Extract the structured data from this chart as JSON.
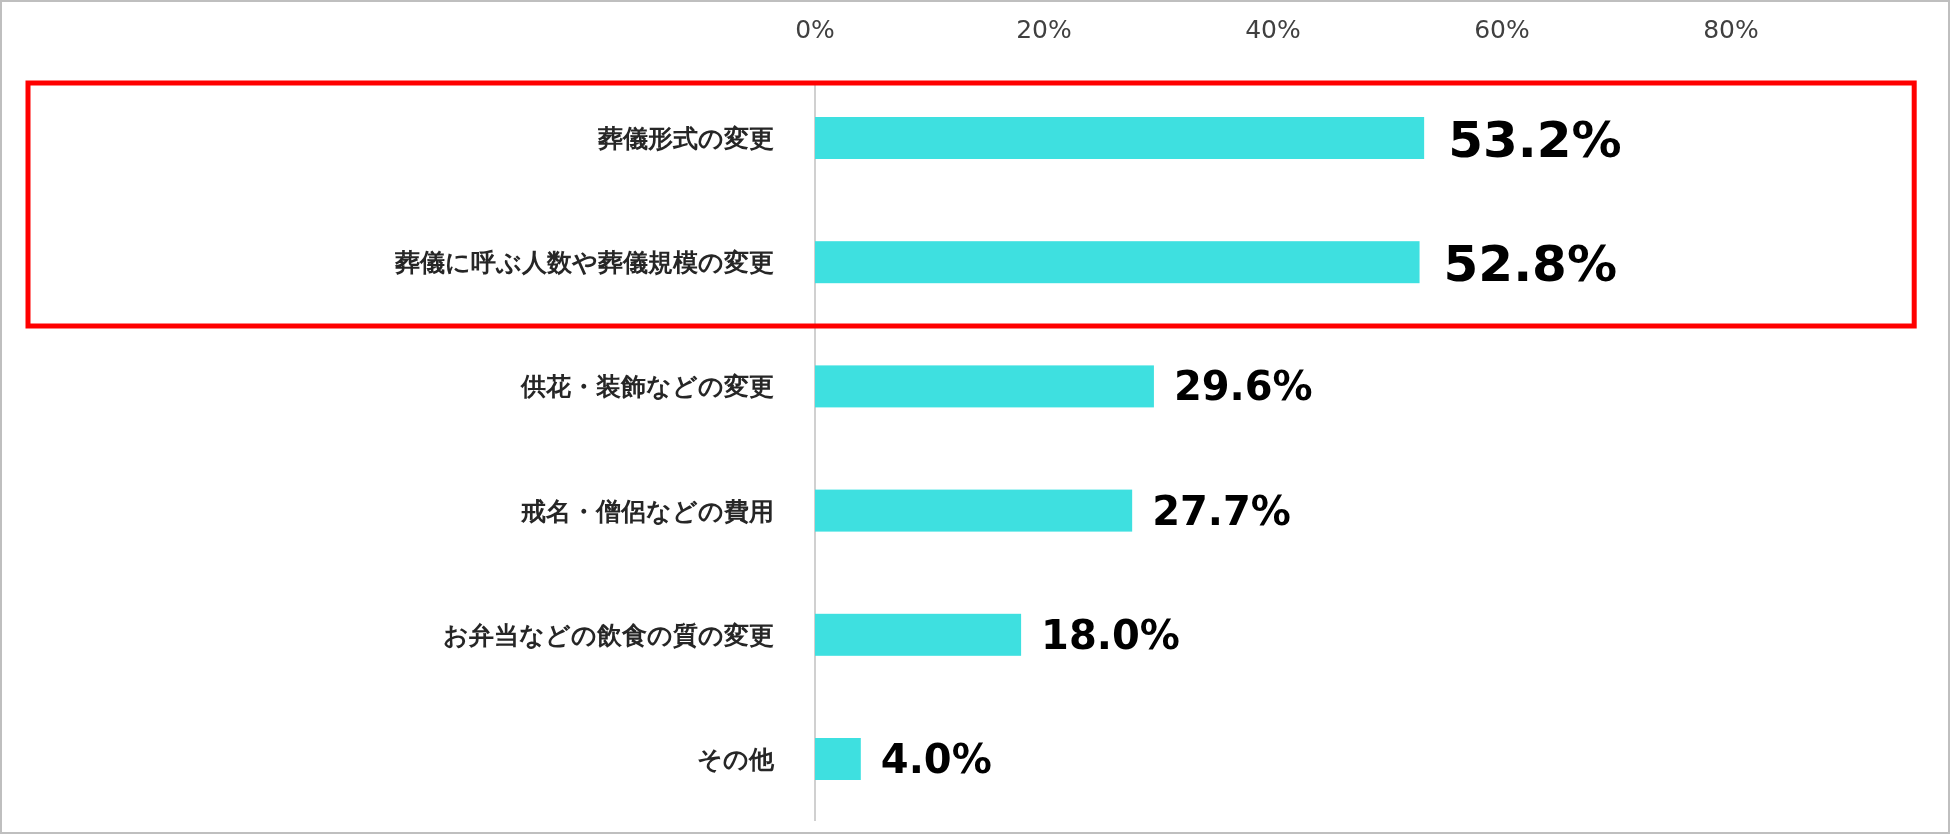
{
  "chart_data": {
    "type": "bar",
    "orientation": "horizontal",
    "categories": [
      "葬儀形式の変更",
      "葬儀に呼ぶ人数や葬儀規模の変更",
      "供花・装飾などの変更",
      "戒名・僧侶などの費用",
      "お弁当などの飲食の質の変更",
      "その他"
    ],
    "values": [
      53.2,
      52.8,
      29.6,
      27.7,
      18.0,
      4.0
    ],
    "value_labels": [
      "53.2%",
      "52.8%",
      "29.6%",
      "27.7%",
      "18.0%",
      "4.0%"
    ],
    "color": "#3ee0e0",
    "xlim": [
      0,
      96
    ],
    "xticks": [
      {
        "value": 0,
        "label": "0%"
      },
      {
        "value": 20,
        "label": "20%"
      },
      {
        "value": 40,
        "label": "40%"
      },
      {
        "value": 60,
        "label": "60%"
      },
      {
        "value": 80,
        "label": "80%"
      }
    ],
    "grid": false
  }
}
